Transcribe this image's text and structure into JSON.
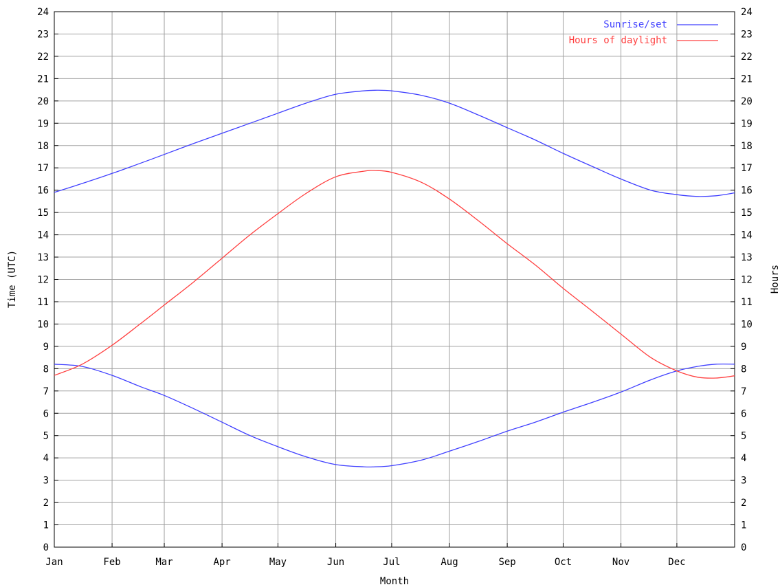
{
  "chart_data": {
    "type": "line",
    "title": "",
    "xlabel": "Month",
    "ylabel": "Time (UTC)",
    "y2label": "Hours",
    "x_tick_labels": [
      "Jan",
      "Feb",
      "Mar",
      "Apr",
      "May",
      "Jun",
      "Jul",
      "Aug",
      "Sep",
      "Oct",
      "Nov",
      "Dec"
    ],
    "x_tick_days": [
      0,
      31,
      59,
      90,
      120,
      151,
      181,
      212,
      243,
      273,
      304,
      334
    ],
    "xlim_days": [
      0,
      365
    ],
    "ylim": [
      0,
      24
    ],
    "y2lim": [
      0,
      24
    ],
    "y_tick_labels": [
      "0",
      "1",
      "2",
      "3",
      "4",
      "5",
      "6",
      "7",
      "8",
      "9",
      "10",
      "11",
      "12",
      "13",
      "14",
      "15",
      "16",
      "17",
      "18",
      "19",
      "20",
      "21",
      "22",
      "23",
      "24"
    ],
    "grid": true,
    "legend_position": "top-right",
    "series": [
      {
        "name": "Sunrise/set",
        "color": "#4040ff",
        "kind": "sunset",
        "x_days": [
          0,
          15,
          31,
          46,
          59,
          75,
          90,
          105,
          120,
          135,
          151,
          166,
          172,
          181,
          197,
          212,
          228,
          243,
          258,
          273,
          289,
          304,
          320,
          334,
          345,
          355,
          365
        ],
        "values": [
          15.9,
          16.3,
          16.75,
          17.2,
          17.6,
          18.1,
          18.55,
          19.0,
          19.45,
          19.9,
          20.3,
          20.45,
          20.48,
          20.45,
          20.25,
          19.9,
          19.35,
          18.8,
          18.25,
          17.65,
          17.05,
          16.5,
          16.0,
          15.8,
          15.72,
          15.75,
          15.88
        ]
      },
      {
        "name": "",
        "color": "#4040ff",
        "kind": "sunrise",
        "x_days": [
          0,
          15,
          31,
          46,
          59,
          75,
          90,
          105,
          120,
          135,
          151,
          166,
          172,
          181,
          197,
          212,
          228,
          243,
          258,
          273,
          289,
          304,
          320,
          334,
          345,
          355,
          365
        ],
        "values": [
          8.2,
          8.1,
          7.7,
          7.2,
          6.8,
          6.2,
          5.6,
          5.0,
          4.5,
          4.05,
          3.7,
          3.6,
          3.6,
          3.65,
          3.9,
          4.3,
          4.75,
          5.2,
          5.6,
          6.05,
          6.5,
          6.95,
          7.5,
          7.9,
          8.1,
          8.2,
          8.2
        ]
      },
      {
        "name": "Hours of daylight",
        "color": "#ff4040",
        "kind": "daylight",
        "x_days": [
          0,
          15,
          31,
          46,
          59,
          75,
          90,
          105,
          120,
          135,
          151,
          166,
          172,
          181,
          197,
          212,
          228,
          243,
          258,
          273,
          289,
          304,
          320,
          334,
          345,
          355,
          365
        ],
        "values": [
          7.7,
          8.2,
          9.05,
          10.0,
          10.85,
          11.9,
          12.95,
          14.0,
          14.95,
          15.85,
          16.6,
          16.85,
          16.88,
          16.8,
          16.35,
          15.6,
          14.6,
          13.6,
          12.65,
          11.6,
          10.55,
          9.55,
          8.5,
          7.9,
          7.62,
          7.58,
          7.68
        ]
      }
    ]
  }
}
